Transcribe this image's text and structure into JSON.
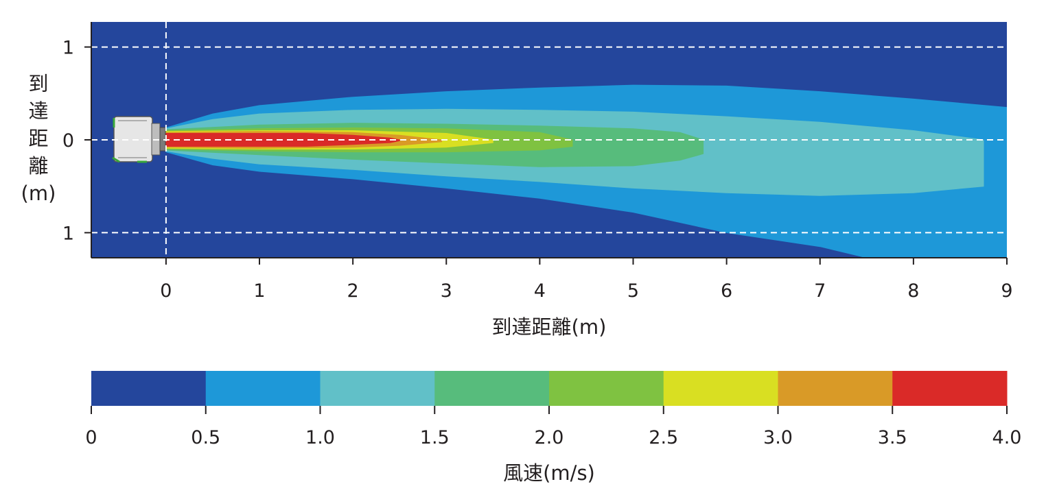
{
  "chart_data": {
    "type": "heatmap",
    "title": "",
    "xlabel": "到達距離(m)",
    "ylabel": "到達距離(m)",
    "ylabel_chars": [
      "到",
      "達",
      "距",
      "離",
      "(m)"
    ],
    "xlim": [
      -0.8,
      9
    ],
    "ylim": [
      -1.27,
      1.27
    ],
    "x_ticks": [
      0,
      1,
      2,
      3,
      4,
      5,
      6,
      7,
      8,
      9
    ],
    "y_ticks": [
      {
        "value": 1,
        "label": "1"
      },
      {
        "value": 0,
        "label": "0"
      },
      {
        "value": -1,
        "label": "1"
      }
    ],
    "grid": "dashed lines at y=1, y=0, y=-1 and x=0",
    "background_color": "#24469c",
    "source": "fan unit at x≈-0.5…0, blowing toward +x",
    "contours": [
      {
        "min": 0.5,
        "max": 1.0,
        "color": "#1e98d8",
        "upper": [
          [
            0,
            0.13
          ],
          [
            0.5,
            0.28
          ],
          [
            1,
            0.37
          ],
          [
            2,
            0.46
          ],
          [
            3,
            0.52
          ],
          [
            4,
            0.56
          ],
          [
            5,
            0.59
          ],
          [
            6,
            0.58
          ],
          [
            7,
            0.52
          ],
          [
            8,
            0.44
          ],
          [
            9,
            0.35
          ]
        ],
        "lower": [
          [
            0,
            -0.13
          ],
          [
            0.5,
            -0.27
          ],
          [
            1,
            -0.34
          ],
          [
            2,
            -0.42
          ],
          [
            3,
            -0.52
          ],
          [
            4,
            -0.63
          ],
          [
            5,
            -0.78
          ],
          [
            6,
            -1.0
          ],
          [
            7,
            -1.15
          ],
          [
            7.5,
            -1.27
          ],
          [
            9,
            -1.27
          ]
        ]
      },
      {
        "min": 1.0,
        "max": 1.5,
        "color": "#61c0c8",
        "upper": [
          [
            0,
            0.12
          ],
          [
            0.5,
            0.22
          ],
          [
            1,
            0.28
          ],
          [
            2,
            0.32
          ],
          [
            3,
            0.33
          ],
          [
            4,
            0.32
          ],
          [
            5,
            0.3
          ],
          [
            6,
            0.25
          ],
          [
            7,
            0.19
          ],
          [
            8,
            0.1
          ],
          [
            8.75,
            0.0
          ]
        ],
        "lower": [
          [
            0,
            -0.12
          ],
          [
            0.5,
            -0.2
          ],
          [
            1,
            -0.26
          ],
          [
            2,
            -0.32
          ],
          [
            3,
            -0.39
          ],
          [
            4,
            -0.45
          ],
          [
            5,
            -0.52
          ],
          [
            6,
            -0.57
          ],
          [
            7,
            -0.6
          ],
          [
            8,
            -0.57
          ],
          [
            8.75,
            -0.5
          ]
        ]
      },
      {
        "min": 1.5,
        "max": 2.0,
        "color": "#57bc7c",
        "upper": [
          [
            0,
            0.11
          ],
          [
            1,
            0.16
          ],
          [
            2,
            0.18
          ],
          [
            3,
            0.17
          ],
          [
            4,
            0.15
          ],
          [
            5,
            0.12
          ],
          [
            5.5,
            0.08
          ],
          [
            5.75,
            0.0
          ]
        ],
        "lower": [
          [
            0,
            -0.11
          ],
          [
            1,
            -0.16
          ],
          [
            2,
            -0.21
          ],
          [
            3,
            -0.25
          ],
          [
            4,
            -0.29
          ],
          [
            5,
            -0.28
          ],
          [
            5.5,
            -0.22
          ],
          [
            5.75,
            -0.15
          ]
        ]
      },
      {
        "min": 2.0,
        "max": 2.5,
        "color": "#7fc241",
        "upper": [
          [
            0,
            0.1
          ],
          [
            1,
            0.12
          ],
          [
            2,
            0.13
          ],
          [
            3,
            0.12
          ],
          [
            4,
            0.08
          ],
          [
            4.35,
            0.0
          ]
        ],
        "lower": [
          [
            0,
            -0.1
          ],
          [
            1,
            -0.12
          ],
          [
            2,
            -0.13
          ],
          [
            3,
            -0.13
          ],
          [
            4,
            -0.11
          ],
          [
            4.35,
            -0.07
          ]
        ]
      },
      {
        "min": 2.5,
        "max": 3.0,
        "color": "#d9df22",
        "upper": [
          [
            0,
            0.09
          ],
          [
            1,
            0.1
          ],
          [
            2,
            0.1
          ],
          [
            3,
            0.07
          ],
          [
            3.5,
            0.0
          ]
        ],
        "lower": [
          [
            0,
            -0.09
          ],
          [
            1,
            -0.1
          ],
          [
            2,
            -0.1
          ],
          [
            3,
            -0.08
          ],
          [
            3.5,
            -0.03
          ]
        ]
      },
      {
        "min": 3.0,
        "max": 3.5,
        "color": "#d99a27",
        "upper": [
          [
            0,
            0.08
          ],
          [
            1,
            0.09
          ],
          [
            2,
            0.08
          ],
          [
            2.5,
            0.05
          ],
          [
            2.95,
            0.0
          ]
        ],
        "lower": [
          [
            0,
            -0.08
          ],
          [
            1,
            -0.09
          ],
          [
            2,
            -0.08
          ],
          [
            2.5,
            -0.06
          ],
          [
            2.95,
            -0.02
          ]
        ]
      },
      {
        "min": 3.5,
        "max": 4.0,
        "color": "#da2a28",
        "upper": [
          [
            0,
            0.07
          ],
          [
            1,
            0.07
          ],
          [
            1.5,
            0.07
          ],
          [
            2,
            0.05
          ],
          [
            2.4,
            0.02
          ],
          [
            2.5,
            0.0
          ]
        ],
        "lower": [
          [
            0,
            -0.07
          ],
          [
            1,
            -0.07
          ],
          [
            1.5,
            -0.07
          ],
          [
            2,
            -0.05
          ],
          [
            2.4,
            -0.03
          ],
          [
            2.5,
            -0.01
          ]
        ]
      }
    ],
    "colorbar": {
      "title": "風速(m/s)",
      "bins": [
        {
          "from": 0.0,
          "to": 0.5,
          "color": "#24469c"
        },
        {
          "from": 0.5,
          "to": 1.0,
          "color": "#1e98d8"
        },
        {
          "from": 1.0,
          "to": 1.5,
          "color": "#61c0c8"
        },
        {
          "from": 1.5,
          "to": 2.0,
          "color": "#57bc7c"
        },
        {
          "from": 2.0,
          "to": 2.5,
          "color": "#7fc241"
        },
        {
          "from": 2.5,
          "to": 3.0,
          "color": "#d9df22"
        },
        {
          "from": 3.0,
          "to": 3.5,
          "color": "#d99a27"
        },
        {
          "from": 3.5,
          "to": 4.0,
          "color": "#da2a28"
        }
      ],
      "tick_labels": [
        "0",
        "0.5",
        "1.0",
        "1.5",
        "2.0",
        "2.5",
        "3.0",
        "3.5",
        "4.0"
      ]
    }
  }
}
